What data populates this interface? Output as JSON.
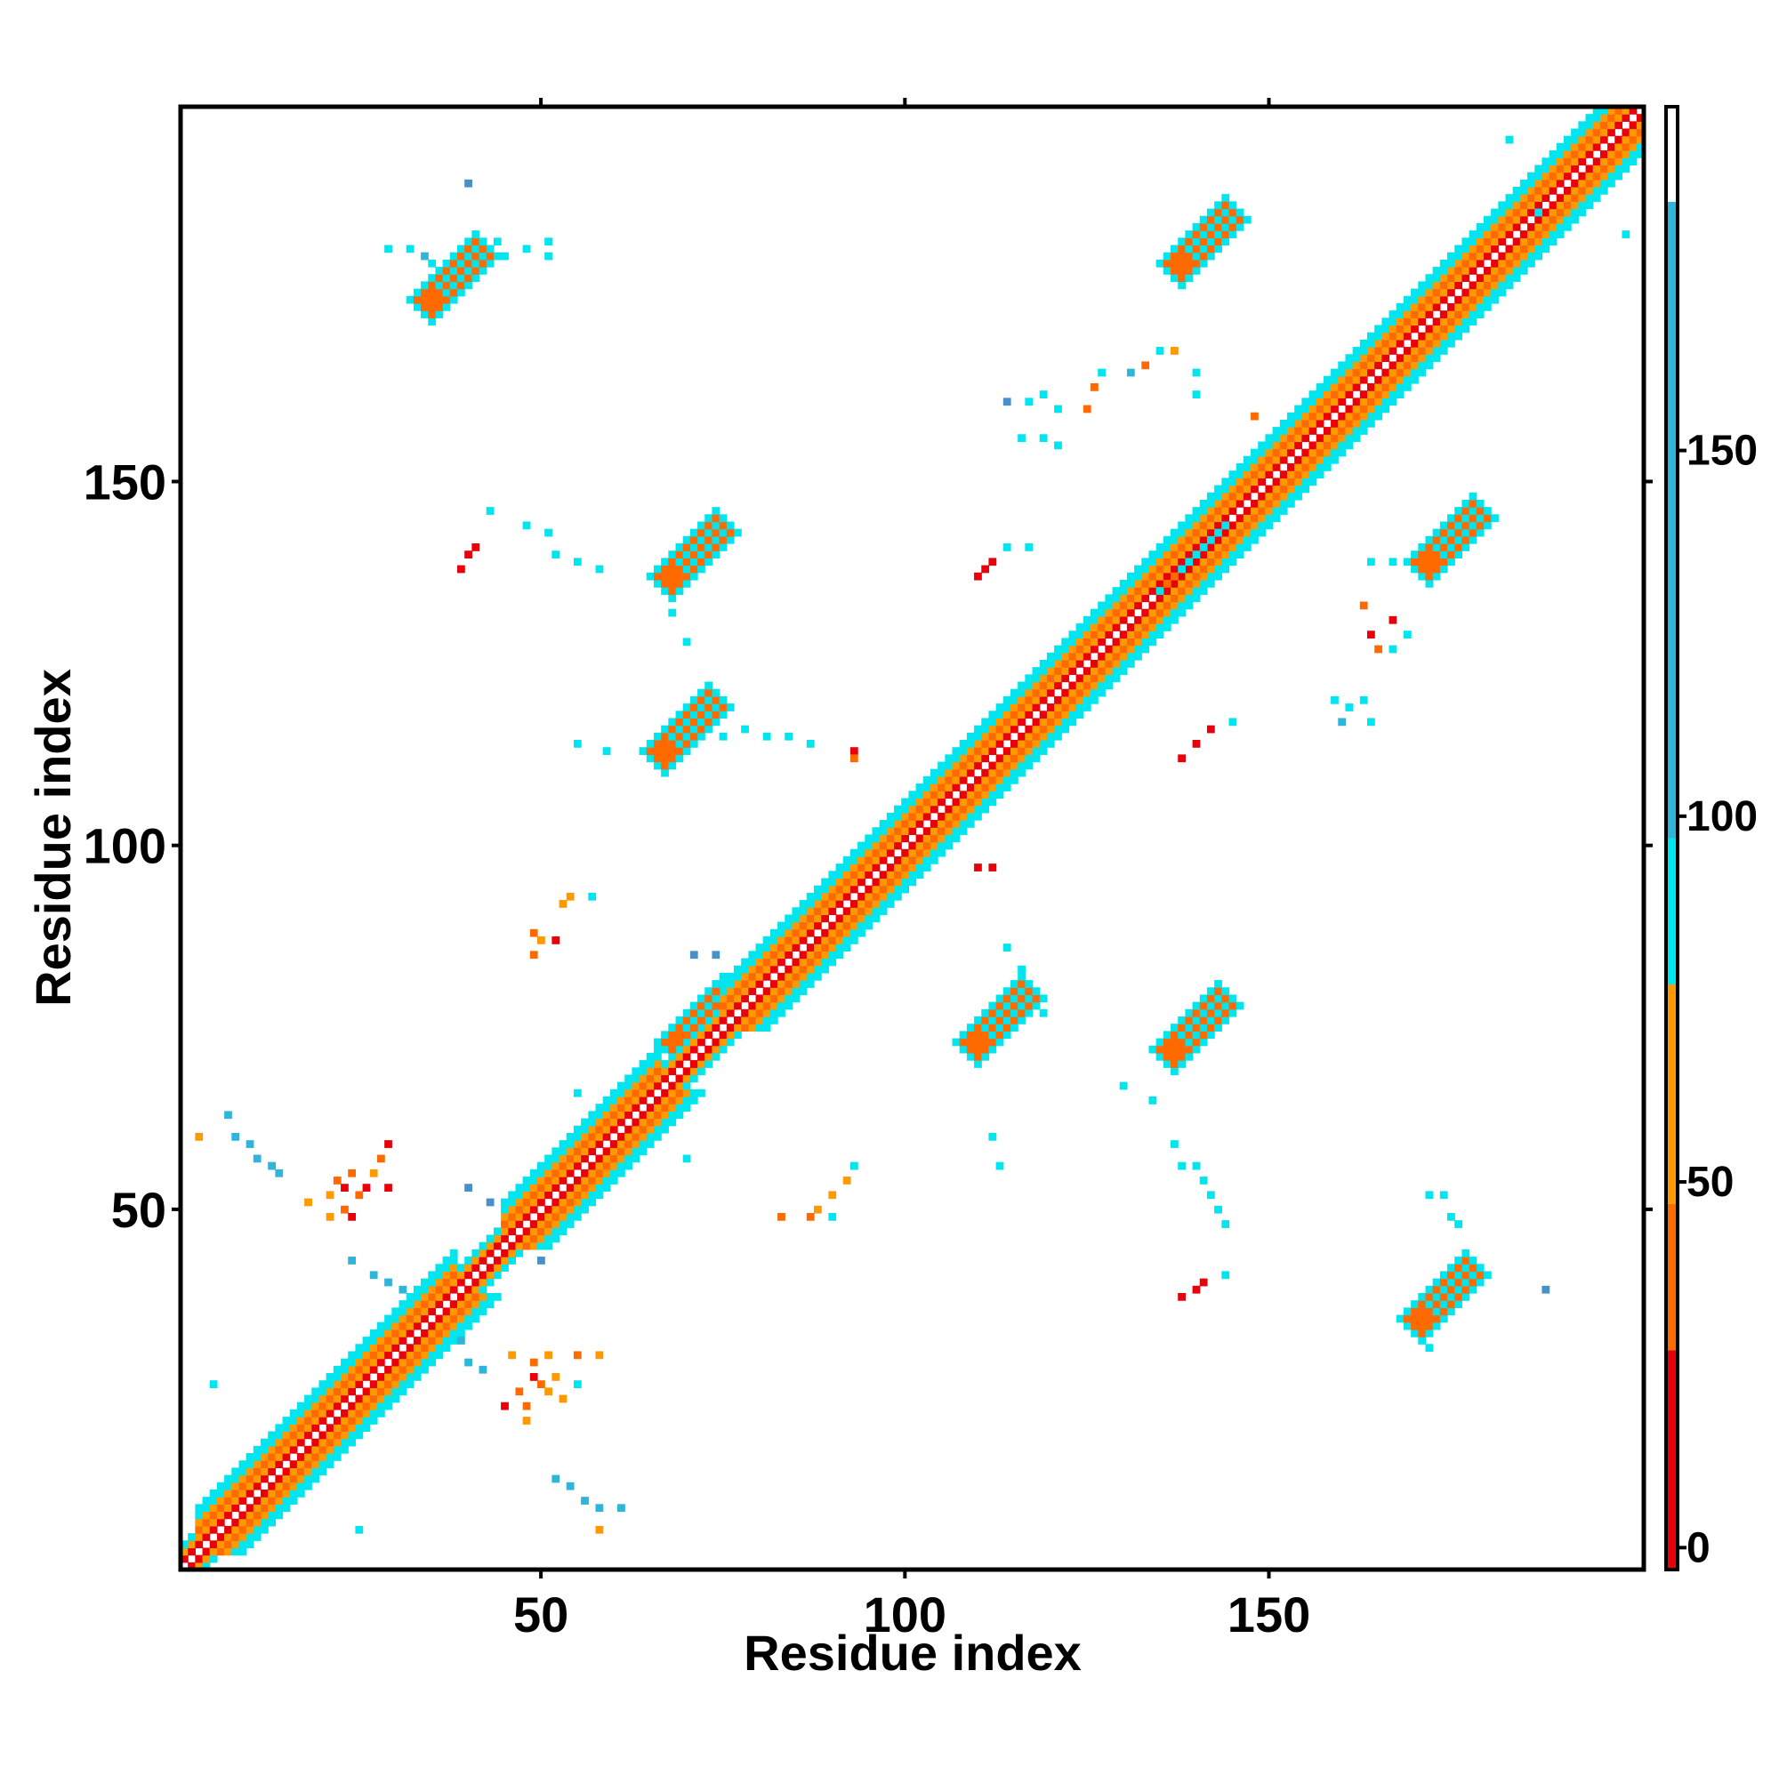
{
  "chart_data": {
    "type": "heatmap",
    "title": "",
    "xlabel": "Residue index",
    "ylabel": "Residue index",
    "xlim": [
      1,
      201
    ],
    "ylim": [
      1,
      201
    ],
    "x_ticks": [
      50,
      100,
      150
    ],
    "y_ticks": [
      50,
      100,
      150
    ],
    "grid": false,
    "colorbar": {
      "ticks": [
        0,
        50,
        100,
        150
      ],
      "range": [
        -3,
        197
      ],
      "bands": [
        {
          "from": -3,
          "to": 27,
          "color": "#e8000b"
        },
        {
          "from": 27,
          "to": 47,
          "color": "#ff6a00"
        },
        {
          "from": 47,
          "to": 77,
          "color": "#ff9900"
        },
        {
          "from": 77,
          "to": 97,
          "color": "#00e5ee"
        },
        {
          "from": 97,
          "to": 184,
          "color": "#2fb5da"
        },
        {
          "from": 184,
          "to": 197,
          "color": "#ffffff"
        }
      ]
    },
    "palette": {
      "diag_red": "#e8000b",
      "diag_orange": "#ff6a00",
      "diag_gold": "#ff9900",
      "cyan": "#00e5ee",
      "mid_blue": "#2fb5da",
      "steel_blue": "#4a90c8"
    },
    "diagonal": {
      "from": 1,
      "to": 201
    },
    "helix_segments": [
      [
        3,
        16
      ],
      [
        16,
        38
      ],
      [
        45,
        66
      ],
      [
        75,
        94
      ],
      [
        94,
        118
      ],
      [
        118,
        135
      ],
      [
        135,
        160
      ],
      [
        160,
        201
      ]
    ],
    "patches": [
      {
        "x": 38,
        "y": 178,
        "dx": 4,
        "dy": 3
      },
      {
        "x": 71,
        "y": 140,
        "dx": 4,
        "dy": 3
      },
      {
        "x": 70,
        "y": 116,
        "dx": 4,
        "dy": 3
      },
      {
        "x": 113,
        "y": 76,
        "dx": 4,
        "dy": 3
      },
      {
        "x": 140,
        "y": 75,
        "dx": 4,
        "dy": 3
      },
      {
        "x": 141,
        "y": 183,
        "dx": 4,
        "dy": 3
      },
      {
        "x": 175,
        "y": 142,
        "dx": 4,
        "dy": 3
      },
      {
        "x": 174,
        "y": 38,
        "dx": 4,
        "dy": 3
      },
      {
        "x": 72,
        "y": 76,
        "dx": 3,
        "dy": 3
      },
      {
        "x": 139,
        "y": 140,
        "dx": 3,
        "dy": 3
      }
    ],
    "scatter_cells": [
      [
        40,
        191,
        "steel_blue"
      ],
      [
        29,
        182,
        "cyan"
      ],
      [
        32,
        182,
        "cyan"
      ],
      [
        34,
        181,
        "mid_blue"
      ],
      [
        35,
        180,
        "cyan"
      ],
      [
        44,
        183,
        "cyan"
      ],
      [
        48,
        182,
        "cyan"
      ],
      [
        51,
        183,
        "cyan"
      ],
      [
        51,
        181,
        "cyan"
      ],
      [
        45,
        181,
        "cyan"
      ],
      [
        114,
        161,
        "steel_blue"
      ],
      [
        117,
        161,
        "cyan"
      ],
      [
        119,
        162,
        "cyan"
      ],
      [
        121,
        160,
        "cyan"
      ],
      [
        116,
        156,
        "cyan"
      ],
      [
        119,
        156,
        "cyan"
      ],
      [
        121,
        155,
        "cyan"
      ],
      [
        125,
        160,
        "diag_orange"
      ],
      [
        126,
        163,
        "diag_orange"
      ],
      [
        127,
        165,
        "cyan"
      ],
      [
        131,
        165,
        "mid_blue"
      ],
      [
        133,
        166,
        "diag_orange"
      ],
      [
        135,
        168,
        "cyan"
      ],
      [
        137,
        168,
        "diag_gold"
      ],
      [
        140,
        165,
        "cyan"
      ],
      [
        140,
        162,
        "cyan"
      ],
      [
        148,
        159,
        "diag_orange"
      ],
      [
        187,
        187,
        "cyan"
      ],
      [
        183,
        197,
        "cyan"
      ],
      [
        199,
        184,
        "cyan"
      ],
      [
        39,
        138,
        "diag_red"
      ],
      [
        40,
        140,
        "diag_red"
      ],
      [
        41,
        141,
        "diag_red"
      ],
      [
        43,
        146,
        "cyan"
      ],
      [
        48,
        144,
        "cyan"
      ],
      [
        51,
        143,
        "cyan"
      ],
      [
        52,
        140,
        "cyan"
      ],
      [
        55,
        139,
        "cyan"
      ],
      [
        58,
        138,
        "cyan"
      ],
      [
        70,
        128,
        "cyan"
      ],
      [
        68,
        132,
        "cyan"
      ],
      [
        110,
        137,
        "diag_red"
      ],
      [
        111,
        138,
        "diag_red"
      ],
      [
        112,
        139,
        "diag_red"
      ],
      [
        114,
        141,
        "cyan"
      ],
      [
        117,
        141,
        "cyan"
      ],
      [
        153,
        149,
        "diag_orange"
      ],
      [
        164,
        139,
        "cyan"
      ],
      [
        167,
        139,
        "cyan"
      ],
      [
        170,
        139,
        "cyan"
      ],
      [
        163,
        133,
        "diag_orange"
      ],
      [
        164,
        129,
        "diag_red"
      ],
      [
        167,
        131,
        "diag_red"
      ],
      [
        165,
        127,
        "diag_orange"
      ],
      [
        169,
        129,
        "cyan"
      ],
      [
        167,
        127,
        "cyan"
      ],
      [
        159,
        120,
        "cyan"
      ],
      [
        161,
        119,
        "cyan"
      ],
      [
        163,
        120,
        "cyan"
      ],
      [
        160,
        117,
        "mid_blue"
      ],
      [
        164,
        117,
        "cyan"
      ],
      [
        55,
        114,
        "cyan"
      ],
      [
        59,
        113,
        "cyan"
      ],
      [
        75,
        115,
        "cyan"
      ],
      [
        78,
        116,
        "cyan"
      ],
      [
        81,
        115,
        "cyan"
      ],
      [
        84,
        115,
        "cyan"
      ],
      [
        87,
        114,
        "cyan"
      ],
      [
        93,
        113,
        "diag_red"
      ],
      [
        93,
        112,
        "diag_orange"
      ],
      [
        140,
        114,
        "diag_red"
      ],
      [
        142,
        116,
        "diag_red"
      ],
      [
        145,
        117,
        "cyan"
      ],
      [
        138,
        112,
        "diag_red"
      ],
      [
        110,
        97,
        "diag_red"
      ],
      [
        112,
        97,
        "diag_red"
      ],
      [
        114,
        86,
        "cyan"
      ],
      [
        116,
        83,
        "cyan"
      ],
      [
        117,
        81,
        "cyan"
      ],
      [
        116,
        78,
        "cyan"
      ],
      [
        119,
        77,
        "cyan"
      ],
      [
        49,
        88,
        "diag_orange"
      ],
      [
        50,
        87,
        "diag_gold"
      ],
      [
        52,
        87,
        "diag_red"
      ],
      [
        49,
        85,
        "diag_orange"
      ],
      [
        53,
        92,
        "diag_gold"
      ],
      [
        54,
        93,
        "diag_gold"
      ],
      [
        57,
        93,
        "cyan"
      ],
      [
        71,
        85,
        "steel_blue"
      ],
      [
        74,
        85,
        "steel_blue"
      ],
      [
        78,
        77,
        "steel_blue"
      ],
      [
        80,
        76,
        "cyan"
      ],
      [
        3,
        60,
        "diag_gold"
      ],
      [
        7,
        63,
        "mid_blue"
      ],
      [
        8,
        60,
        "mid_blue"
      ],
      [
        10,
        59,
        "mid_blue"
      ],
      [
        11,
        57,
        "mid_blue"
      ],
      [
        13,
        56,
        "mid_blue"
      ],
      [
        14,
        55,
        "mid_blue"
      ],
      [
        18,
        51,
        "diag_gold"
      ],
      [
        21,
        52,
        "diag_gold"
      ],
      [
        22,
        54,
        "diag_orange"
      ],
      [
        24,
        55,
        "diag_orange"
      ],
      [
        23,
        53,
        "diag_red"
      ],
      [
        26,
        53,
        "diag_red"
      ],
      [
        27,
        55,
        "diag_gold"
      ],
      [
        28,
        57,
        "diag_orange"
      ],
      [
        29,
        59,
        "diag_red"
      ],
      [
        29,
        53,
        "diag_red"
      ],
      [
        25,
        52,
        "diag_orange"
      ],
      [
        23,
        50,
        "diag_orange"
      ],
      [
        21,
        49,
        "diag_gold"
      ],
      [
        24,
        49,
        "diag_red"
      ],
      [
        24,
        43,
        "mid_blue"
      ],
      [
        27,
        41,
        "mid_blue"
      ],
      [
        29,
        40,
        "mid_blue"
      ],
      [
        31,
        39,
        "mid_blue"
      ],
      [
        39,
        32,
        "mid_blue"
      ],
      [
        40,
        29,
        "mid_blue"
      ],
      [
        42,
        28,
        "mid_blue"
      ],
      [
        40,
        53,
        "steel_blue"
      ],
      [
        43,
        51,
        "steel_blue"
      ],
      [
        46,
        44,
        "mid_blue"
      ],
      [
        50,
        43,
        "steel_blue"
      ],
      [
        46,
        30,
        "diag_gold"
      ],
      [
        49,
        29,
        "diag_orange"
      ],
      [
        51,
        30,
        "diag_gold"
      ],
      [
        49,
        27,
        "diag_red"
      ],
      [
        52,
        27,
        "diag_gold"
      ],
      [
        47,
        25,
        "diag_orange"
      ],
      [
        50,
        26,
        "diag_orange"
      ],
      [
        45,
        23,
        "diag_red"
      ],
      [
        48,
        23,
        "diag_orange"
      ],
      [
        53,
        24,
        "diag_gold"
      ],
      [
        48,
        21,
        "diag_gold"
      ],
      [
        51,
        25,
        "diag_gold"
      ],
      [
        55,
        26,
        "cyan"
      ],
      [
        55,
        30,
        "diag_orange"
      ],
      [
        58,
        30,
        "diag_gold"
      ],
      [
        52,
        13,
        "mid_blue"
      ],
      [
        54,
        12,
        "mid_blue"
      ],
      [
        56,
        10,
        "mid_blue"
      ],
      [
        58,
        9,
        "mid_blue"
      ],
      [
        61,
        9,
        "mid_blue"
      ],
      [
        58,
        6,
        "diag_gold"
      ],
      [
        25,
        6,
        "cyan"
      ],
      [
        5,
        26,
        "cyan"
      ],
      [
        87,
        49,
        "diag_orange"
      ],
      [
        88,
        50,
        "diag_gold"
      ],
      [
        90,
        52,
        "diag_gold"
      ],
      [
        92,
        54,
        "diag_gold"
      ],
      [
        93,
        56,
        "cyan"
      ],
      [
        90,
        49,
        "cyan"
      ],
      [
        83,
        49,
        "diag_orange"
      ],
      [
        70,
        57,
        "cyan"
      ],
      [
        55,
        66,
        "cyan"
      ],
      [
        61,
        62,
        "cyan"
      ],
      [
        112,
        60,
        "cyan"
      ],
      [
        113,
        56,
        "cyan"
      ],
      [
        137,
        59,
        "cyan"
      ],
      [
        138,
        56,
        "cyan"
      ],
      [
        140,
        56,
        "cyan"
      ],
      [
        141,
        54,
        "cyan"
      ],
      [
        142,
        52,
        "cyan"
      ],
      [
        143,
        50,
        "cyan"
      ],
      [
        144,
        48,
        "cyan"
      ],
      [
        130,
        67,
        "cyan"
      ],
      [
        134,
        65,
        "cyan"
      ],
      [
        138,
        38,
        "diag_red"
      ],
      [
        140,
        39,
        "diag_red"
      ],
      [
        141,
        40,
        "diag_red"
      ],
      [
        144,
        41,
        "cyan"
      ],
      [
        172,
        52,
        "cyan"
      ],
      [
        174,
        52,
        "cyan"
      ],
      [
        175,
        49,
        "cyan"
      ],
      [
        176,
        48,
        "cyan"
      ],
      [
        172,
        33,
        "cyan"
      ],
      [
        172,
        31,
        "cyan"
      ],
      [
        188,
        39,
        "steel_blue"
      ]
    ]
  }
}
